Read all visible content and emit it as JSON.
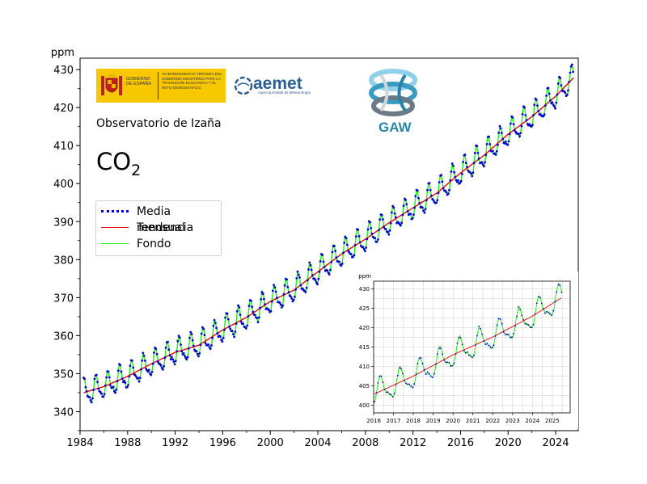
{
  "header": {
    "ylabel_unit": "ppm",
    "gobierno_label": "GOBIERNO DE ESPAÑA",
    "ministerio_label": "VICEPRESIDENCIA TERCERA DEL GOBIERNO MINISTERIO PARA LA TRANSICIÓN ECOLÓGICA Y EL RETO DEMOGRÁFICO",
    "aemet_word": "aemet",
    "aemet_sub": "Agencia Estatal de Meteorología",
    "gaw_word": "GAW",
    "observatory": "Observatorio de Izaña",
    "gas_main": "CO",
    "gas_sub": "2"
  },
  "colors": {
    "monthly": "#0000cc",
    "trend": "#ee0000",
    "background": "#22ee22"
  },
  "legend": {
    "items": [
      {
        "key": "monthly",
        "label": "Media mensual"
      },
      {
        "key": "trend",
        "label": "Tendencia"
      },
      {
        "key": "background",
        "label": "Fondo"
      }
    ]
  },
  "chart_data": [
    {
      "type": "line",
      "ylabel": "ppm",
      "xlim": [
        1984,
        2025.9
      ],
      "ylim": [
        335,
        433
      ],
      "xticks": [
        1984,
        1988,
        1992,
        1996,
        2000,
        2004,
        2008,
        2012,
        2016,
        2020,
        2024
      ],
      "yticks": [
        340,
        350,
        360,
        370,
        380,
        390,
        400,
        410,
        420,
        430
      ],
      "grid": false,
      "legend_position": "upper-left",
      "trend_anchors": {
        "years": [
          1984.3,
          1986,
          1988,
          1990,
          1992,
          1994,
          1996,
          1998,
          2000,
          2002,
          2004,
          2006,
          2008,
          2010,
          2012,
          2014,
          2016,
          2018,
          2020,
          2022,
          2024,
          2025.4
        ],
        "ppm": [
          345.0,
          346.6,
          349.3,
          352.6,
          355.6,
          357.5,
          361.5,
          364.8,
          369.0,
          372.0,
          376.8,
          381.5,
          385.4,
          389.7,
          393.6,
          397.5,
          402.8,
          407.5,
          413.0,
          417.6,
          423.0,
          427.5
        ]
      },
      "seasonal_amplitude_ppm": 3.3,
      "series": [
        {
          "name": "Media mensual",
          "style": "dotted"
        },
        {
          "name": "Tendencia",
          "style": "line"
        },
        {
          "name": "Fondo",
          "style": "line"
        }
      ]
    },
    {
      "type": "line",
      "ylabel": "ppm",
      "xlim": [
        2016,
        2025.9
      ],
      "ylim": [
        398,
        432
      ],
      "xticks": [
        2016,
        2017,
        2018,
        2019,
        2020,
        2021,
        2022,
        2023,
        2024,
        2025
      ],
      "yticks": [
        400,
        405,
        410,
        415,
        420,
        425,
        430
      ],
      "grid": true,
      "series": [
        {
          "name": "Media mensual",
          "style": "dotted"
        },
        {
          "name": "Tendencia",
          "style": "line"
        },
        {
          "name": "Fondo",
          "style": "line"
        }
      ]
    }
  ]
}
